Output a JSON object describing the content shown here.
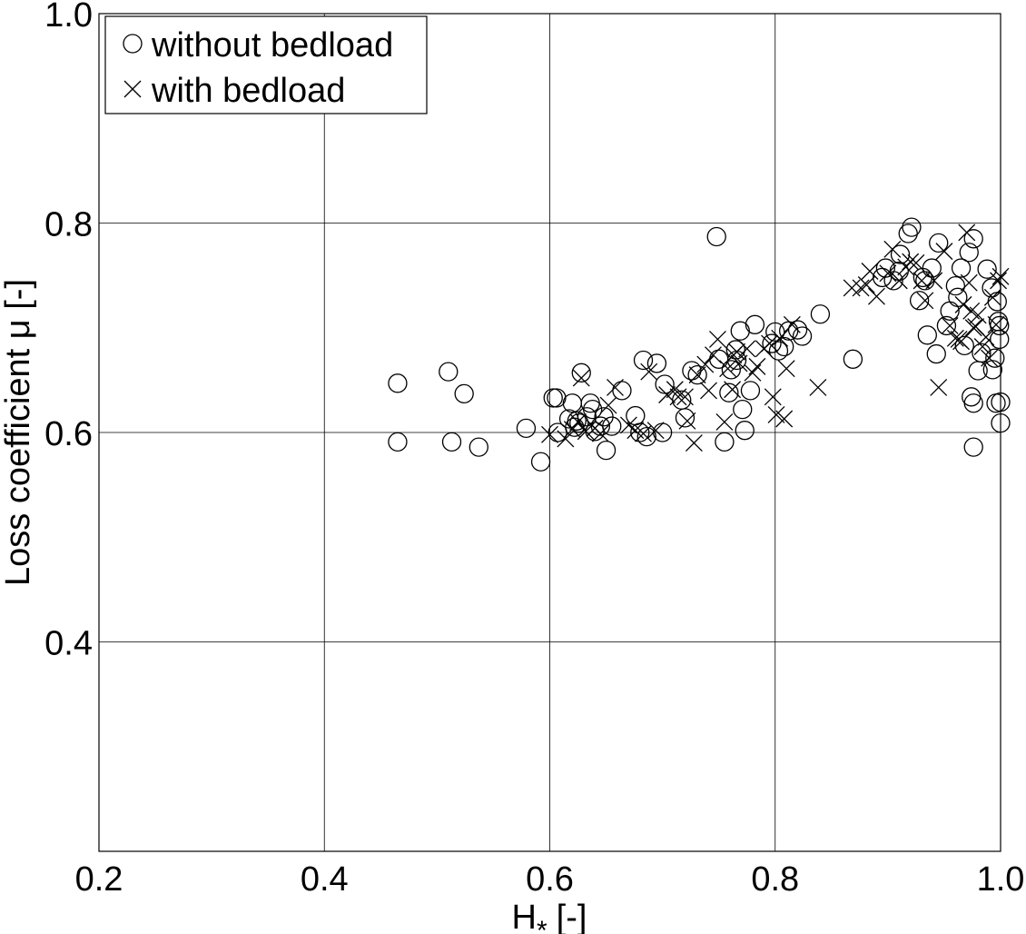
{
  "chart_data": {
    "type": "scatter",
    "xlabel": "H",
    "xlabel_sub": "*",
    "xlabel_unit": "[-]",
    "ylabel": "Loss coefficient μ [-]",
    "xlim": [
      0.2,
      1.0
    ],
    "ylim": [
      0.2,
      1.0
    ],
    "xticks": [
      0.2,
      0.4,
      0.6,
      0.8,
      1.0
    ],
    "xtick_labels": [
      "0.2",
      "0.4",
      "0.6",
      "0.8",
      "1.0"
    ],
    "yticks": [
      0.4,
      0.6,
      0.8,
      1.0
    ],
    "ytick_labels": [
      "0.4",
      "0.6",
      "0.8",
      "1.0"
    ],
    "grid": true,
    "legend_position": "top-left",
    "series": [
      {
        "name": "without bedload",
        "marker": "circle",
        "points": [
          [
            0.465,
            0.647
          ],
          [
            0.465,
            0.591
          ],
          [
            0.51,
            0.658
          ],
          [
            0.513,
            0.591
          ],
          [
            0.524,
            0.637
          ],
          [
            0.537,
            0.586
          ],
          [
            0.579,
            0.604
          ],
          [
            0.592,
            0.572
          ],
          [
            0.603,
            0.633
          ],
          [
            0.606,
            0.633
          ],
          [
            0.607,
            0.6
          ],
          [
            0.617,
            0.613
          ],
          [
            0.62,
            0.628
          ],
          [
            0.622,
            0.605
          ],
          [
            0.624,
            0.611
          ],
          [
            0.626,
            0.609
          ],
          [
            0.628,
            0.657
          ],
          [
            0.633,
            0.615
          ],
          [
            0.636,
            0.628
          ],
          [
            0.638,
            0.622
          ],
          [
            0.64,
            0.601
          ],
          [
            0.645,
            0.606
          ],
          [
            0.648,
            0.615
          ],
          [
            0.65,
            0.583
          ],
          [
            0.655,
            0.606
          ],
          [
            0.664,
            0.64
          ],
          [
            0.676,
            0.616
          ],
          [
            0.68,
            0.6
          ],
          [
            0.683,
            0.669
          ],
          [
            0.686,
            0.596
          ],
          [
            0.695,
            0.666
          ],
          [
            0.7,
            0.6
          ],
          [
            0.702,
            0.646
          ],
          [
            0.717,
            0.631
          ],
          [
            0.72,
            0.614
          ],
          [
            0.726,
            0.659
          ],
          [
            0.731,
            0.655
          ],
          [
            0.748,
            0.787
          ],
          [
            0.75,
            0.67
          ],
          [
            0.755,
            0.591
          ],
          [
            0.759,
            0.638
          ],
          [
            0.761,
            0.66
          ],
          [
            0.765,
            0.679
          ],
          [
            0.766,
            0.669
          ],
          [
            0.769,
            0.697
          ],
          [
            0.771,
            0.622
          ],
          [
            0.773,
            0.602
          ],
          [
            0.778,
            0.64
          ],
          [
            0.782,
            0.703
          ],
          [
            0.797,
            0.685
          ],
          [
            0.8,
            0.696
          ],
          [
            0.803,
            0.678
          ],
          [
            0.808,
            0.682
          ],
          [
            0.812,
            0.697
          ],
          [
            0.82,
            0.698
          ],
          [
            0.824,
            0.692
          ],
          [
            0.84,
            0.713
          ],
          [
            0.869,
            0.67
          ],
          [
            0.895,
            0.748
          ],
          [
            0.898,
            0.757
          ],
          [
            0.905,
            0.745
          ],
          [
            0.91,
            0.754
          ],
          [
            0.911,
            0.77
          ],
          [
            0.918,
            0.79
          ],
          [
            0.921,
            0.796
          ],
          [
            0.928,
            0.726
          ],
          [
            0.931,
            0.748
          ],
          [
            0.933,
            0.745
          ],
          [
            0.935,
            0.693
          ],
          [
            0.939,
            0.757
          ],
          [
            0.943,
            0.675
          ],
          [
            0.945,
            0.781
          ],
          [
            0.952,
            0.702
          ],
          [
            0.955,
            0.716
          ],
          [
            0.96,
            0.74
          ],
          [
            0.962,
            0.729
          ],
          [
            0.965,
            0.757
          ],
          [
            0.968,
            0.683
          ],
          [
            0.972,
            0.772
          ],
          [
            0.974,
            0.634
          ],
          [
            0.976,
            0.628
          ],
          [
            0.976,
            0.586
          ],
          [
            0.976,
            0.785
          ],
          [
            0.98,
            0.659
          ],
          [
            0.983,
            0.676
          ],
          [
            0.988,
            0.756
          ],
          [
            0.992,
            0.738
          ],
          [
            0.993,
            0.66
          ],
          [
            0.995,
            0.671
          ],
          [
            0.996,
            0.628
          ],
          [
            0.997,
            0.725
          ],
          [
            0.998,
            0.706
          ],
          [
            0.999,
            0.689
          ],
          [
            1.0,
            0.609
          ],
          [
            1.0,
            0.629
          ],
          [
            0.999,
            0.702
          ]
        ]
      },
      {
        "name": "with bedload",
        "marker": "cross",
        "points": [
          [
            0.6,
            0.598
          ],
          [
            0.614,
            0.594
          ],
          [
            0.62,
            0.603
          ],
          [
            0.625,
            0.61
          ],
          [
            0.628,
            0.652
          ],
          [
            0.632,
            0.601
          ],
          [
            0.64,
            0.604
          ],
          [
            0.645,
            0.599
          ],
          [
            0.652,
            0.626
          ],
          [
            0.658,
            0.643
          ],
          [
            0.67,
            0.607
          ],
          [
            0.676,
            0.602
          ],
          [
            0.683,
            0.599
          ],
          [
            0.688,
            0.658
          ],
          [
            0.694,
            0.602
          ],
          [
            0.704,
            0.636
          ],
          [
            0.711,
            0.641
          ],
          [
            0.714,
            0.634
          ],
          [
            0.72,
            0.634
          ],
          [
            0.722,
            0.611
          ],
          [
            0.728,
            0.59
          ],
          [
            0.731,
            0.655
          ],
          [
            0.738,
            0.665
          ],
          [
            0.741,
            0.64
          ],
          [
            0.745,
            0.674
          ],
          [
            0.749,
            0.689
          ],
          [
            0.755,
            0.61
          ],
          [
            0.758,
            0.661
          ],
          [
            0.762,
            0.641
          ],
          [
            0.763,
            0.674
          ],
          [
            0.766,
            0.677
          ],
          [
            0.768,
            0.666
          ],
          [
            0.775,
            0.68
          ],
          [
            0.78,
            0.657
          ],
          [
            0.784,
            0.663
          ],
          [
            0.79,
            0.68
          ],
          [
            0.795,
            0.685
          ],
          [
            0.798,
            0.634
          ],
          [
            0.801,
            0.617
          ],
          [
            0.804,
            0.69
          ],
          [
            0.808,
            0.613
          ],
          [
            0.81,
            0.661
          ],
          [
            0.815,
            0.703
          ],
          [
            0.838,
            0.643
          ],
          [
            0.868,
            0.738
          ],
          [
            0.876,
            0.738
          ],
          [
            0.881,
            0.741
          ],
          [
            0.884,
            0.754
          ],
          [
            0.89,
            0.73
          ],
          [
            0.9,
            0.752
          ],
          [
            0.904,
            0.775
          ],
          [
            0.91,
            0.745
          ],
          [
            0.916,
            0.758
          ],
          [
            0.92,
            0.763
          ],
          [
            0.925,
            0.762
          ],
          [
            0.93,
            0.745
          ],
          [
            0.933,
            0.726
          ],
          [
            0.941,
            0.745
          ],
          [
            0.945,
            0.643
          ],
          [
            0.95,
            0.773
          ],
          [
            0.955,
            0.702
          ],
          [
            0.96,
            0.69
          ],
          [
            0.963,
            0.689
          ],
          [
            0.965,
            0.687
          ],
          [
            0.967,
            0.722
          ],
          [
            0.97,
            0.791
          ],
          [
            0.972,
            0.743
          ],
          [
            0.974,
            0.716
          ],
          [
            0.976,
            0.7
          ],
          [
            0.978,
            0.701
          ],
          [
            0.98,
            0.712
          ],
          [
            0.984,
            0.682
          ],
          [
            0.987,
            0.691
          ],
          [
            0.99,
            0.671
          ],
          [
            0.993,
            0.729
          ],
          [
            0.996,
            0.703
          ],
          [
            0.998,
            0.745
          ],
          [
            1.0,
            0.749
          ]
        ]
      }
    ]
  }
}
